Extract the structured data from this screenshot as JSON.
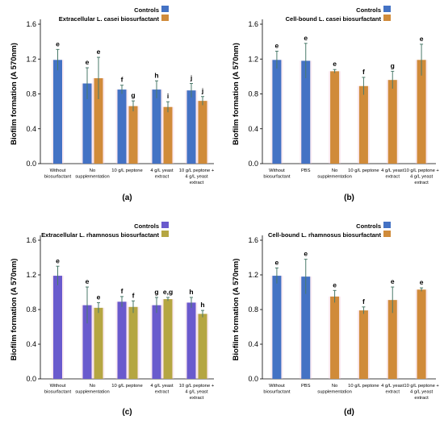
{
  "chart_data": [
    {
      "type": "bar",
      "panel_label": "(a)",
      "ylabel": "Biofilm formation (A 570nm)",
      "ylim": [
        0,
        1.6
      ],
      "yticks": [
        "0.0",
        "0.4",
        "0.8",
        "1.2",
        "1.6"
      ],
      "legend": [
        {
          "name": "Controls",
          "color": "#4472c4"
        },
        {
          "name": "Extracellular L. casei biosurfactant",
          "color": "#d08b3a"
        }
      ],
      "categories": [
        "Without biosurfactant",
        "No supplementation",
        "10 g/L peptone",
        "4 g/L yeast extract",
        "10 g/L peptone + 4 g/L yeast extract"
      ],
      "bars": [
        {
          "category": 0,
          "series": "Controls",
          "value": 1.19,
          "error": 0.12,
          "letter": "e"
        },
        {
          "category": 1,
          "series": "Controls",
          "value": 0.92,
          "error": 0.18,
          "letter": "e"
        },
        {
          "category": 1,
          "series": "Extracellular L. casei biosurfactant",
          "value": 0.98,
          "error": 0.24,
          "letter": "e"
        },
        {
          "category": 2,
          "series": "Controls",
          "value": 0.85,
          "error": 0.05,
          "letter": "f"
        },
        {
          "category": 2,
          "series": "Extracellular L. casei biosurfactant",
          "value": 0.66,
          "error": 0.06,
          "letter": "g"
        },
        {
          "category": 3,
          "series": "Controls",
          "value": 0.85,
          "error": 0.1,
          "letter": "h"
        },
        {
          "category": 3,
          "series": "Extracellular L. casei biosurfactant",
          "value": 0.65,
          "error": 0.06,
          "letter": "i"
        },
        {
          "category": 4,
          "series": "Controls",
          "value": 0.84,
          "error": 0.08,
          "letter": "j"
        },
        {
          "category": 4,
          "series": "Extracellular L. casei biosurfactant",
          "value": 0.72,
          "error": 0.05,
          "letter": "j"
        }
      ]
    },
    {
      "type": "bar",
      "panel_label": "(b)",
      "ylabel": "Biofilm formation (A 570nm)",
      "ylim": [
        0,
        1.6
      ],
      "yticks": [
        "0.0",
        "0.4",
        "0.8",
        "1.2",
        "1.6"
      ],
      "legend": [
        {
          "name": "Controls",
          "color": "#4472c4"
        },
        {
          "name": "Cell-bound L. casei biosurfactant",
          "color": "#d08b3a"
        }
      ],
      "categories": [
        "Without biosurfactant",
        "PBS",
        "No supplementation",
        "10 g/L peptone",
        "4 g/L yeast extract",
        "10 g/L peptone + 4 g/L yeast extract"
      ],
      "bars": [
        {
          "category": 0,
          "series": "Controls",
          "value": 1.19,
          "error": 0.1,
          "letter": "e"
        },
        {
          "category": 1,
          "series": "Controls",
          "value": 1.18,
          "error": 0.2,
          "letter": "e"
        },
        {
          "category": 2,
          "series": "Cell-bound L. casei biosurfactant",
          "value": 1.06,
          "error": 0.02,
          "letter": "e"
        },
        {
          "category": 3,
          "series": "Cell-bound L. casei biosurfactant",
          "value": 0.89,
          "error": 0.1,
          "letter": "f"
        },
        {
          "category": 4,
          "series": "Cell-bound L. casei biosurfactant",
          "value": 0.96,
          "error": 0.1,
          "letter": "g"
        },
        {
          "category": 5,
          "series": "Cell-bound L. casei biosurfactant",
          "value": 1.19,
          "error": 0.18,
          "letter": "e"
        }
      ]
    },
    {
      "type": "bar",
      "panel_label": "(c)",
      "ylabel": "Biofilm formation (A 570nm)",
      "ylim": [
        0,
        1.6
      ],
      "yticks": [
        "0.0",
        "0.4",
        "0.8",
        "1.2",
        "1.6"
      ],
      "legend": [
        {
          "name": "Controls",
          "color": "#6a5acd"
        },
        {
          "name": "Extracellular L. rhamnosus biosurfactant",
          "color": "#b5a642"
        }
      ],
      "categories": [
        "Without biosurfactant",
        "No supplementation",
        "10 g/L peptone",
        "4 g/L yeast extract",
        "10 g/L peptone + 4 g/L yeast extract"
      ],
      "bars": [
        {
          "category": 0,
          "series": "Controls",
          "value": 1.19,
          "error": 0.11,
          "letter": "e"
        },
        {
          "category": 1,
          "series": "Controls",
          "value": 0.85,
          "error": 0.21,
          "letter": "e"
        },
        {
          "category": 1,
          "series": "Extracellular L. rhamnosus biosurfactant",
          "value": 0.82,
          "error": 0.06,
          "letter": "e"
        },
        {
          "category": 2,
          "series": "Controls",
          "value": 0.89,
          "error": 0.06,
          "letter": "f"
        },
        {
          "category": 2,
          "series": "Extracellular L. rhamnosus biosurfactant",
          "value": 0.83,
          "error": 0.07,
          "letter": "f"
        },
        {
          "category": 3,
          "series": "Controls",
          "value": 0.85,
          "error": 0.09,
          "letter": "g"
        },
        {
          "category": 3,
          "series": "Extracellular L. rhamnosus biosurfactant",
          "value": 0.92,
          "error": 0.02,
          "letter": "e,g"
        },
        {
          "category": 4,
          "series": "Controls",
          "value": 0.88,
          "error": 0.06,
          "letter": "h"
        },
        {
          "category": 4,
          "series": "Extracellular L. rhamnosus biosurfactant",
          "value": 0.75,
          "error": 0.04,
          "letter": "h"
        }
      ]
    },
    {
      "type": "bar",
      "panel_label": "(d)",
      "ylabel": "Biofilm formation (A 570nm)",
      "ylim": [
        0,
        1.6
      ],
      "yticks": [
        "0.0",
        "0.4",
        "0.8",
        "1.2",
        "1.6"
      ],
      "legend": [
        {
          "name": "Controls",
          "color": "#4472c4"
        },
        {
          "name": "Cell-bound L. rhamnosus biosurfactant",
          "color": "#d08b3a"
        }
      ],
      "categories": [
        "Without biosurfactant",
        "PBS",
        "No supplementation",
        "10 g/L peptone",
        "4 g/L yeast extract",
        "10 g/L peptone + 4 g/L yeast extract"
      ],
      "bars": [
        {
          "category": 0,
          "series": "Controls",
          "value": 1.19,
          "error": 0.09,
          "letter": "e"
        },
        {
          "category": 1,
          "series": "Controls",
          "value": 1.18,
          "error": 0.2,
          "letter": "e"
        },
        {
          "category": 2,
          "series": "Cell-bound L. rhamnosus biosurfactant",
          "value": 0.95,
          "error": 0.07,
          "letter": "e"
        },
        {
          "category": 3,
          "series": "Cell-bound L. rhamnosus biosurfactant",
          "value": 0.79,
          "error": 0.04,
          "letter": "f"
        },
        {
          "category": 4,
          "series": "Cell-bound L. rhamnosus biosurfactant",
          "value": 0.91,
          "error": 0.15,
          "letter": "e"
        },
        {
          "category": 5,
          "series": "Cell-bound L. rhamnosus biosurfactant",
          "value": 1.03,
          "error": 0.02,
          "letter": "e"
        }
      ]
    }
  ]
}
